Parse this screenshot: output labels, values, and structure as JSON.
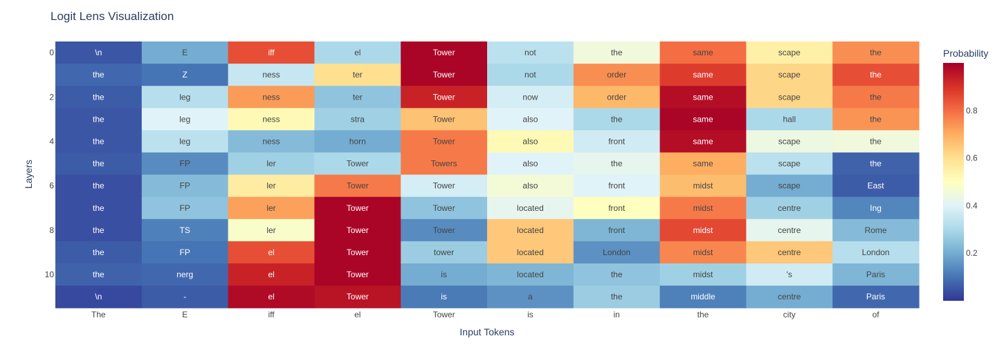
{
  "chart_data": {
    "type": "heatmap",
    "title": "Logit Lens Visualization",
    "xlabel": "Input Tokens",
    "ylabel": "Layers",
    "colorbar_title": "Probability",
    "colorbar_ticks": [
      0.2,
      0.4,
      0.6,
      0.8
    ],
    "colorbar_range": [
      0,
      1
    ],
    "colorscale": [
      "#313695",
      "#4575b4",
      "#74add1",
      "#abd9e9",
      "#e0f3f8",
      "#ffffbf",
      "#fee090",
      "#fdae61",
      "#f46d43",
      "#d73027",
      "#a50026"
    ],
    "x_tokens": [
      "The",
      "E",
      "iff",
      "el",
      "Tower",
      "is",
      "in",
      "the",
      "city",
      "of"
    ],
    "y_tick_labels": [
      "0",
      "",
      "2",
      "",
      "4",
      "",
      "6",
      "",
      "8",
      "",
      "10",
      ""
    ],
    "cells": [
      [
        "\\n",
        "E",
        "iff",
        "el",
        "Tower",
        "not",
        "the",
        "same",
        "scape",
        "the"
      ],
      [
        "the",
        "Z",
        "ness",
        "ter",
        "Tower",
        "not",
        "order",
        "same",
        "scape",
        "the"
      ],
      [
        "the",
        "leg",
        "ness",
        "ter",
        "Tower",
        "now",
        "order",
        "same",
        "scape",
        "the"
      ],
      [
        "the",
        "leg",
        "ness",
        "stra",
        "Tower",
        "also",
        "the",
        "same",
        "hall",
        "the"
      ],
      [
        "the",
        "leg",
        "ness",
        "horn",
        "Tower",
        "also",
        "front",
        "same",
        "scape",
        "the"
      ],
      [
        "the",
        "FP",
        "ler",
        "Tower",
        "Towers",
        "also",
        "the",
        "same",
        "scape",
        "the"
      ],
      [
        "the",
        "FP",
        "ler",
        "Tower",
        "Tower",
        "also",
        "front",
        "midst",
        "scape",
        "East"
      ],
      [
        "the",
        "FP",
        "ler",
        "Tower",
        "Tower",
        "located",
        "front",
        "midst",
        "centre",
        "Ing"
      ],
      [
        "the",
        "TS",
        "ler",
        "Tower",
        "Tower",
        "located",
        "front",
        "midst",
        "centre",
        "Rome"
      ],
      [
        "the",
        "FP",
        "el",
        "Tower",
        "tower",
        "located",
        "London",
        "midst",
        "centre",
        "London"
      ],
      [
        "the",
        "nerg",
        "el",
        "Tower",
        "is",
        "located",
        "the",
        "midst",
        "'s",
        "Paris"
      ],
      [
        "\\n",
        "-",
        "el",
        "Tower",
        "is",
        "a",
        "the",
        "middle",
        "centre",
        "Paris"
      ]
    ],
    "values": [
      [
        0.05,
        0.2,
        0.85,
        0.3,
        0.99,
        0.33,
        0.45,
        0.8,
        0.55,
        0.75
      ],
      [
        0.08,
        0.1,
        0.35,
        0.6,
        0.99,
        0.3,
        0.75,
        0.88,
        0.62,
        0.85
      ],
      [
        0.06,
        0.32,
        0.73,
        0.25,
        0.93,
        0.38,
        0.68,
        0.97,
        0.62,
        0.78
      ],
      [
        0.05,
        0.4,
        0.52,
        0.28,
        0.66,
        0.4,
        0.3,
        0.99,
        0.3,
        0.74
      ],
      [
        0.05,
        0.33,
        0.23,
        0.2,
        0.78,
        0.52,
        0.37,
        0.97,
        0.44,
        0.45
      ],
      [
        0.06,
        0.14,
        0.28,
        0.3,
        0.78,
        0.4,
        0.42,
        0.7,
        0.33,
        0.07
      ],
      [
        0.04,
        0.23,
        0.56,
        0.78,
        0.38,
        0.46,
        0.4,
        0.67,
        0.2,
        0.06
      ],
      [
        0.04,
        0.25,
        0.72,
        0.99,
        0.25,
        0.42,
        0.5,
        0.78,
        0.28,
        0.13
      ],
      [
        0.04,
        0.12,
        0.48,
        0.99,
        0.14,
        0.65,
        0.22,
        0.86,
        0.42,
        0.23
      ],
      [
        0.06,
        0.1,
        0.85,
        0.99,
        0.27,
        0.65,
        0.15,
        0.76,
        0.65,
        0.32
      ],
      [
        0.07,
        0.08,
        0.93,
        0.99,
        0.2,
        0.22,
        0.25,
        0.28,
        0.37,
        0.22
      ],
      [
        0.03,
        0.06,
        0.98,
        0.96,
        0.11,
        0.15,
        0.27,
        0.12,
        0.2,
        0.08
      ]
    ]
  }
}
